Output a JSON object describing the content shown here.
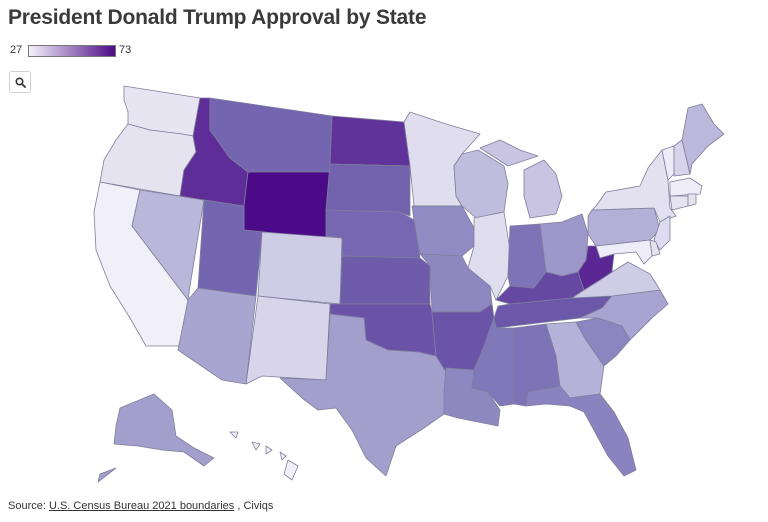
{
  "title": "President Donald Trump Approval by State",
  "legend": {
    "min": "27",
    "max": "73",
    "min_color": "#f4f2fa",
    "max_color": "#4b0a87"
  },
  "controls": {
    "search_icon": "magnifier-icon"
  },
  "source": {
    "prefix": "Source: ",
    "link": "U.S. Census Bureau 2021 boundaries",
    "separator": " , ",
    "suffix": "Civiqs"
  },
  "regions": [
    {
      "id": "WA",
      "fill": "#e8e5f2"
    },
    {
      "id": "OR",
      "fill": "#e6e3f1"
    },
    {
      "id": "CA",
      "fill": "#f1eff8"
    },
    {
      "id": "NV",
      "fill": "#bab7da"
    },
    {
      "id": "ID",
      "fill": "#5f2d98"
    },
    {
      "id": "MT",
      "fill": "#7365b0"
    },
    {
      "id": "WY",
      "fill": "#4b0a87"
    },
    {
      "id": "UT",
      "fill": "#7465b1"
    },
    {
      "id": "AZ",
      "fill": "#a9a5d1"
    },
    {
      "id": "CO",
      "fill": "#cfcce6"
    },
    {
      "id": "NM",
      "fill": "#d8d5eb"
    },
    {
      "id": "ND",
      "fill": "#5f3399"
    },
    {
      "id": "SD",
      "fill": "#7262ad"
    },
    {
      "id": "NE",
      "fill": "#7767b2"
    },
    {
      "id": "KS",
      "fill": "#6e5caa"
    },
    {
      "id": "OK",
      "fill": "#6a52a6"
    },
    {
      "id": "TX",
      "fill": "#a39fcd"
    },
    {
      "id": "MN",
      "fill": "#e0ddee"
    },
    {
      "id": "IA",
      "fill": "#918bc3"
    },
    {
      "id": "MO",
      "fill": "#8e87c0"
    },
    {
      "id": "AR",
      "fill": "#6a54a7"
    },
    {
      "id": "LA",
      "fill": "#8e88c1"
    },
    {
      "id": "WI",
      "fill": "#c0bcde"
    },
    {
      "id": "IL",
      "fill": "#e0ddee"
    },
    {
      "id": "MI",
      "fill": "#c8c4e2"
    },
    {
      "id": "IN",
      "fill": "#7f73b8"
    },
    {
      "id": "OH",
      "fill": "#9d97ca"
    },
    {
      "id": "KY",
      "fill": "#6548a2"
    },
    {
      "id": "TN",
      "fill": "#6b58a8"
    },
    {
      "id": "MS",
      "fill": "#8078b9"
    },
    {
      "id": "AL",
      "fill": "#7f73b8"
    },
    {
      "id": "GA",
      "fill": "#b5b1d8"
    },
    {
      "id": "FL",
      "fill": "#8a83bf"
    },
    {
      "id": "SC",
      "fill": "#8c85c0"
    },
    {
      "id": "NC",
      "fill": "#a8a3d0"
    },
    {
      "id": "VA",
      "fill": "#cfcce6"
    },
    {
      "id": "WV",
      "fill": "#5a2795"
    },
    {
      "id": "PA",
      "fill": "#b3afd6"
    },
    {
      "id": "NY",
      "fill": "#e3e0f0"
    },
    {
      "id": "VT",
      "fill": "#eeecf6"
    },
    {
      "id": "NH",
      "fill": "#d6d3ea"
    },
    {
      "id": "ME",
      "fill": "#bcb8dc"
    },
    {
      "id": "MA",
      "fill": "#eeecf6"
    },
    {
      "id": "CT",
      "fill": "#e6e3f1"
    },
    {
      "id": "RI",
      "fill": "#e6e3f1"
    },
    {
      "id": "NJ",
      "fill": "#dedbee"
    },
    {
      "id": "DE",
      "fill": "#e6e3f1"
    },
    {
      "id": "MD",
      "fill": "#eeecf6"
    },
    {
      "id": "AK",
      "fill": "#a39fcd"
    },
    {
      "id": "HI",
      "fill": "#f1eff8"
    }
  ]
}
